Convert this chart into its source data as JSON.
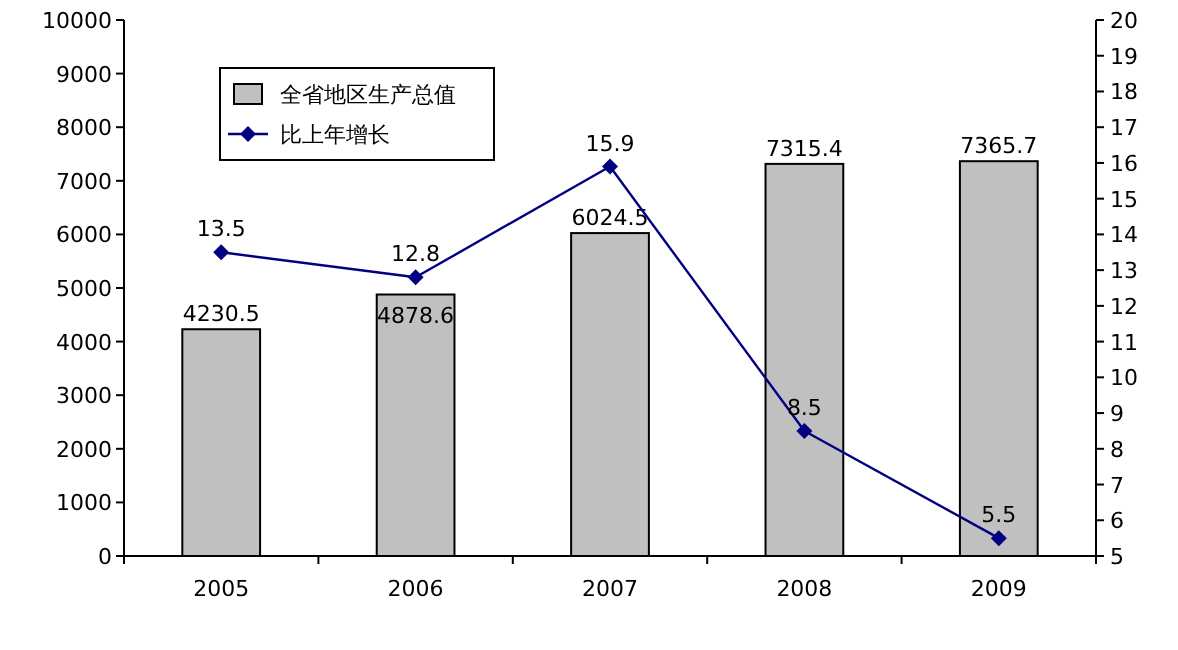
{
  "chart_data": {
    "type": "bar",
    "categories": [
      "2005",
      "2006",
      "2007",
      "2008",
      "2009"
    ],
    "series": [
      {
        "name": "全省地区生产总值",
        "color": "#c0c0c0",
        "values": [
          4230.5,
          4878.6,
          6024.5,
          7315.4,
          7365.7
        ]
      },
      {
        "name": "比上年增长",
        "type": "line",
        "axis": "y2",
        "color": "#000080",
        "marker": "diamond",
        "values": [
          13.5,
          12.8,
          15.9,
          8.5,
          5.5
        ]
      }
    ],
    "ylim": [
      0,
      10000
    ],
    "yticks": [
      0,
      1000,
      2000,
      3000,
      4000,
      5000,
      6000,
      7000,
      8000,
      9000,
      10000
    ],
    "y2lim": [
      5,
      20
    ],
    "y2ticks": [
      5,
      6,
      7,
      8,
      9,
      10,
      11,
      12,
      13,
      14,
      15,
      16,
      17,
      18,
      19,
      20
    ],
    "legend": "top left",
    "data_labels": true,
    "grid": false
  }
}
